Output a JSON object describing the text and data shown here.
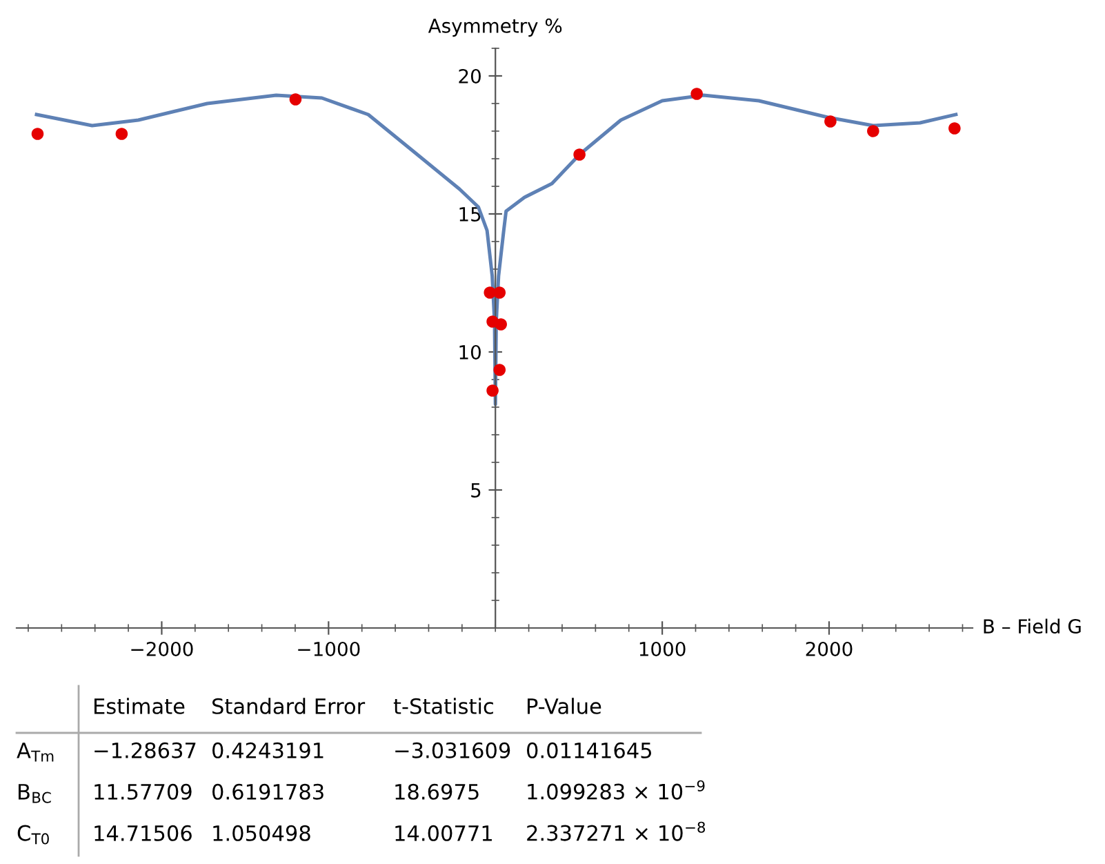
{
  "chart_data": {
    "type": "scatter",
    "ylabel": "Asymmetry %",
    "xlabel": "B – Field G",
    "xlim": [
      -2870,
      2860
    ],
    "ylim": [
      0,
      21
    ],
    "xticks": [
      -2000,
      -1000,
      1000,
      2000
    ],
    "yticks": [
      5,
      10,
      15,
      20
    ],
    "grid": false,
    "legend": false,
    "series": [
      {
        "type": "line",
        "color": "#5e81b5",
        "marker": "none",
        "x": [
          -2750,
          -2417,
          -2140,
          -1727,
          -1314,
          -1040,
          -762,
          -488,
          -215,
          -102,
          -50,
          -19,
          -5,
          0,
          5,
          19,
          50,
          64,
          174,
          339,
          504,
          752,
          1000,
          1248,
          1579,
          1992,
          2264,
          2545,
          2760
        ],
        "values": [
          18.6,
          18.2,
          18.4,
          19.0,
          19.3,
          19.2,
          18.6,
          17.25,
          15.9,
          15.25,
          14.4,
          12.75,
          11.1,
          8.1,
          11.1,
          12.75,
          14.4,
          15.1,
          15.6,
          16.1,
          17.15,
          18.4,
          19.1,
          19.3,
          19.1,
          18.5,
          18.2,
          18.3,
          18.6
        ]
      },
      {
        "color": "#e50000",
        "marker": "circle",
        "x": [
          -2744,
          -2240,
          -1198,
          -33,
          25,
          -17,
          33,
          25,
          -17,
          504,
          1207,
          2008,
          2264,
          2752
        ],
        "values": [
          17.9,
          17.9,
          19.15,
          12.15,
          12.15,
          11.1,
          11.0,
          9.35,
          8.6,
          17.15,
          19.35,
          18.35,
          18.0,
          18.1
        ]
      }
    ],
    "annotations": [
      "Estimate",
      "Standard Error",
      "t-Statistic",
      "P-Value",
      "A$_{Tm}$",
      "−1.28637",
      "0.4243191",
      "−3.031609",
      "0.01141645",
      "B$_{BC}$",
      "11.57709",
      "0.6191783",
      "18.6975",
      "1.099283 × 10$^{−9}$",
      "C$_{T0}$",
      "14.71506",
      "1.050498",
      "14.00771",
      "2.337271 × 10$^{−8}$"
    ]
  }
}
